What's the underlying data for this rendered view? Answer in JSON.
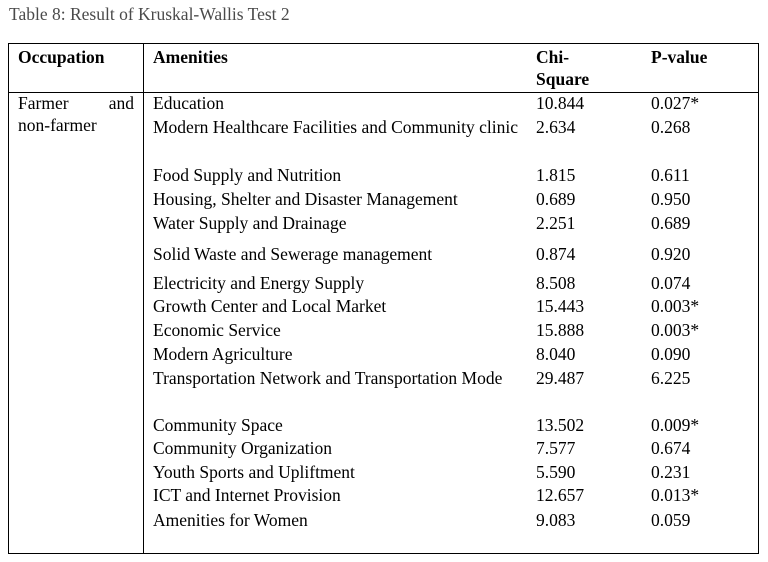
{
  "caption": "Table 8: Result of Kruskal-Wallis Test 2",
  "headers": {
    "occupation": "Occupation",
    "amenities": "Amenities",
    "chi_line1": "Chi-",
    "chi_line2": "Square",
    "pvalue": "P-value"
  },
  "occupation": {
    "line1_a": "Farmer",
    "line1_b": "and",
    "line2": "non-farmer"
  },
  "rows": [
    {
      "amenity": "Education",
      "chi": "10.844",
      "p": "0.027*"
    },
    {
      "amenity": "Modern Healthcare Facilities and Community clinic",
      "chi": "2.634",
      "p": "0.268"
    },
    {
      "amenity": "Food Supply and Nutrition",
      "chi": "1.815",
      "p": "0.611"
    },
    {
      "amenity": "Housing, Shelter and Disaster Management",
      "chi": "0.689",
      "p": "0.950"
    },
    {
      "amenity": "Water Supply and Drainage",
      "chi": "2.251",
      "p": "0.689"
    },
    {
      "amenity": "Solid Waste and Sewerage management",
      "chi": "0.874",
      "p": "0.920"
    },
    {
      "amenity": "Electricity and Energy Supply",
      "chi": "8.508",
      "p": "0.074"
    },
    {
      "amenity": "Growth Center and Local Market",
      "chi": "15.443",
      "p": "0.003*"
    },
    {
      "amenity": "Economic Service",
      "chi": "15.888",
      "p": "0.003*"
    },
    {
      "amenity": "Modern Agriculture",
      "chi": "8.040",
      "p": "0.090"
    },
    {
      "amenity": "Transportation Network and Transportation Mode",
      "chi": "29.487",
      "p": "6.225"
    },
    {
      "amenity": "Community Space",
      "chi": "13.502",
      "p": "0.009*"
    },
    {
      "amenity": "Community Organization",
      "chi": "7.577",
      "p": "0.674"
    },
    {
      "amenity": "Youth Sports and Upliftment",
      "chi": "5.590",
      "p": "0.231"
    },
    {
      "amenity": "ICT and Internet Provision",
      "chi": "12.657",
      "p": "0.013*"
    },
    {
      "amenity": "Amenities for Women",
      "chi": "9.083",
      "p": "0.059"
    }
  ]
}
